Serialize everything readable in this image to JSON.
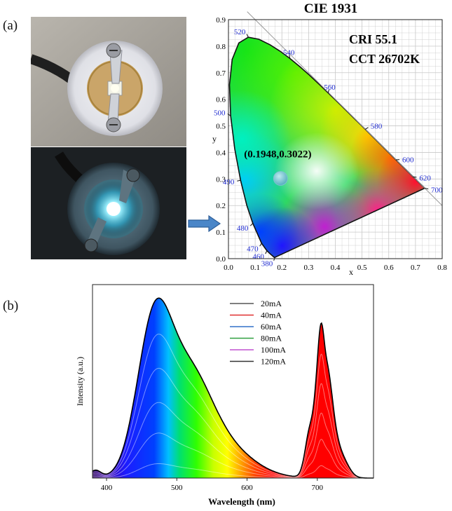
{
  "panel_labels": {
    "a": "(a)",
    "b": "(b)"
  },
  "colors": {
    "arrow": "#4a86c8",
    "grid": "#c8c8c8",
    "wavelength_labels": "#1f2bd0"
  },
  "chart_data": [
    {
      "type": "scatter",
      "title": "CIE 1931",
      "xlabel": "x",
      "ylabel": "y",
      "xlim": [
        0.0,
        0.8
      ],
      "ylim": [
        0.0,
        0.9
      ],
      "grid": true,
      "x_ticks": [
        "0.0",
        "0.1",
        "0.2",
        "0.3",
        "0.4",
        "0.5",
        "0.6",
        "0.7",
        "0.8"
      ],
      "y_ticks": [
        "0.0",
        "0.1",
        "0.2",
        "0.3",
        "0.4",
        "0.5",
        "0.6",
        "0.7",
        "0.8",
        "0.9"
      ],
      "annotations": [
        "CRI  55.1",
        "CCT 26702K"
      ],
      "points": [
        {
          "x": 0.1948,
          "y": 0.3022,
          "label": "(0.1948,0.3022)"
        }
      ],
      "wavelength_labels": [
        {
          "nm": "380",
          "x": 0.1741,
          "y": 0.005
        },
        {
          "nm": "460",
          "x": 0.144,
          "y": 0.03
        },
        {
          "nm": "470",
          "x": 0.124,
          "y": 0.058
        },
        {
          "nm": "480",
          "x": 0.091,
          "y": 0.133
        },
        {
          "nm": "490",
          "x": 0.045,
          "y": 0.295
        },
        {
          "nm": "500",
          "x": 0.008,
          "y": 0.538
        },
        {
          "nm": "520",
          "x": 0.074,
          "y": 0.834
        },
        {
          "nm": "540",
          "x": 0.23,
          "y": 0.754
        },
        {
          "nm": "560",
          "x": 0.373,
          "y": 0.624
        },
        {
          "nm": "580",
          "x": 0.512,
          "y": 0.487
        },
        {
          "nm": "600",
          "x": 0.627,
          "y": 0.372
        },
        {
          "nm": "620",
          "x": 0.691,
          "y": 0.308
        },
        {
          "nm": "700",
          "x": 0.735,
          "y": 0.265
        }
      ]
    },
    {
      "type": "line",
      "xlabel": "Wavelength (nm)",
      "ylabel": "Intensity (a.u.)",
      "xlim": [
        380,
        780
      ],
      "x_ticks": [
        400,
        500,
        600,
        700
      ],
      "series_names": [
        "20mA",
        "40mA",
        "60mA",
        "80mA",
        "100mA",
        "120mA"
      ],
      "series_colors": [
        "#555555",
        "#e03030",
        "#3070c8",
        "#30a040",
        "#c050d0",
        "#333333"
      ],
      "series_scale": [
        0.08,
        0.25,
        0.42,
        0.61,
        0.8,
        1.0
      ]
    }
  ]
}
